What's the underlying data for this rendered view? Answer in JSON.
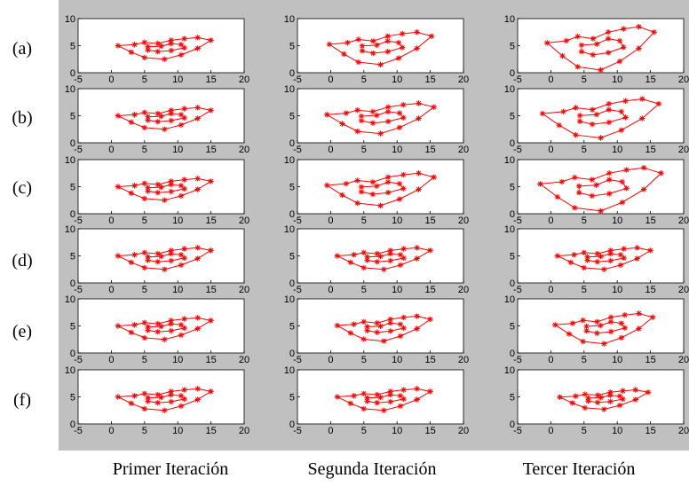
{
  "colors": {
    "background": "#c0c0c0",
    "axes": "#ffffff",
    "series": "#ff0000"
  },
  "row_labels": [
    "(a)",
    "(b)",
    "(c)",
    "(d)",
    "(e)",
    "(f)"
  ],
  "column_labels": [
    "Primer Iteración",
    "Segunda Iteración",
    "Tercer Iteración"
  ],
  "chart_data": {
    "type": "line",
    "layout": "6x3 grid of subplots",
    "marker": "*",
    "xlim": [
      -5,
      20
    ],
    "ylim": [
      0,
      10
    ],
    "xticks": [
      -5,
      0,
      5,
      10,
      15,
      20
    ],
    "yticks": [
      0,
      5,
      10
    ],
    "xtick_labels": [
      "-5",
      "0",
      "5",
      "10",
      "15",
      "20"
    ],
    "ytick_labels": [
      "0",
      "5",
      "10"
    ],
    "grid": false,
    "base_shape": {
      "outer": [
        [
          1,
          5
        ],
        [
          3.5,
          5.2
        ],
        [
          5,
          5.6
        ],
        [
          7,
          5.4
        ],
        [
          9,
          6
        ],
        [
          11,
          6.3
        ],
        [
          13,
          6.5
        ],
        [
          15,
          6
        ],
        [
          13,
          4.5
        ],
        [
          10.5,
          3.3
        ],
        [
          8,
          2.5
        ],
        [
          5,
          2.8
        ],
        [
          3,
          3.8
        ],
        [
          1,
          5
        ]
      ],
      "inner": [
        [
          5.5,
          4.8
        ],
        [
          7.5,
          4.9
        ],
        [
          9,
          5.4
        ],
        [
          10.5,
          5.2
        ],
        [
          11,
          4.6
        ],
        [
          9,
          4.1
        ],
        [
          7,
          3.9
        ],
        [
          5.5,
          4.2
        ],
        [
          5.5,
          4.8
        ]
      ]
    },
    "subplots": [
      {
        "row": "(a)",
        "column": "Primer Iteración",
        "center": [
          8,
          4.5
        ],
        "sx": 1.0,
        "sy": 1.0
      },
      {
        "row": "(a)",
        "column": "Segunda Iteración",
        "center": [
          7.5,
          4.5
        ],
        "sx": 1.1,
        "sy": 1.5
      },
      {
        "row": "(a)",
        "column": "Tercer Iteración",
        "center": [
          7.5,
          4.5
        ],
        "sx": 1.15,
        "sy": 2.0
      },
      {
        "row": "(b)",
        "column": "Primer Iteración",
        "center": [
          8,
          4.5
        ],
        "sx": 1.0,
        "sy": 1.0
      },
      {
        "row": "(b)",
        "column": "Segunda Iteración",
        "center": [
          7.5,
          4.5
        ],
        "sx": 1.15,
        "sy": 1.4
      },
      {
        "row": "(b)",
        "column": "Tercer Iteración",
        "center": [
          7.5,
          4.5
        ],
        "sx": 1.25,
        "sy": 1.8
      },
      {
        "row": "(c)",
        "column": "Primer Iteración",
        "center": [
          8,
          4.5
        ],
        "sx": 1.0,
        "sy": 1.0
      },
      {
        "row": "(c)",
        "column": "Segunda Iteración",
        "center": [
          7.5,
          4.5
        ],
        "sx": 1.15,
        "sy": 1.5
      },
      {
        "row": "(c)",
        "column": "Tercer Iteración",
        "center": [
          7.5,
          4.5
        ],
        "sx": 1.3,
        "sy": 2.0
      },
      {
        "row": "(d)",
        "column": "Primer Iteración",
        "center": [
          8,
          4.5
        ],
        "sx": 1.0,
        "sy": 1.0
      },
      {
        "row": "(d)",
        "column": "Segunda Iteración",
        "center": [
          8,
          4.5
        ],
        "sx": 1.0,
        "sy": 1.0
      },
      {
        "row": "(d)",
        "column": "Tercer Iteración",
        "center": [
          8,
          4.5
        ],
        "sx": 1.0,
        "sy": 1.0
      },
      {
        "row": "(e)",
        "column": "Primer Iteración",
        "center": [
          8,
          4.5
        ],
        "sx": 1.0,
        "sy": 1.0
      },
      {
        "row": "(e)",
        "column": "Segunda Iteración",
        "center": [
          8,
          4.5
        ],
        "sx": 1.0,
        "sy": 1.15
      },
      {
        "row": "(e)",
        "column": "Tercer Iteración",
        "center": [
          8,
          4.5
        ],
        "sx": 1.05,
        "sy": 1.4
      },
      {
        "row": "(f)",
        "column": "Primer Iteración",
        "center": [
          8,
          4.5
        ],
        "sx": 1.0,
        "sy": 1.0
      },
      {
        "row": "(f)",
        "column": "Segunda Iteración",
        "center": [
          8,
          4.5
        ],
        "sx": 1.0,
        "sy": 1.0
      },
      {
        "row": "(f)",
        "column": "Tercer Iteración",
        "center": [
          8,
          4.5
        ],
        "sx": 0.95,
        "sy": 0.9
      }
    ]
  }
}
